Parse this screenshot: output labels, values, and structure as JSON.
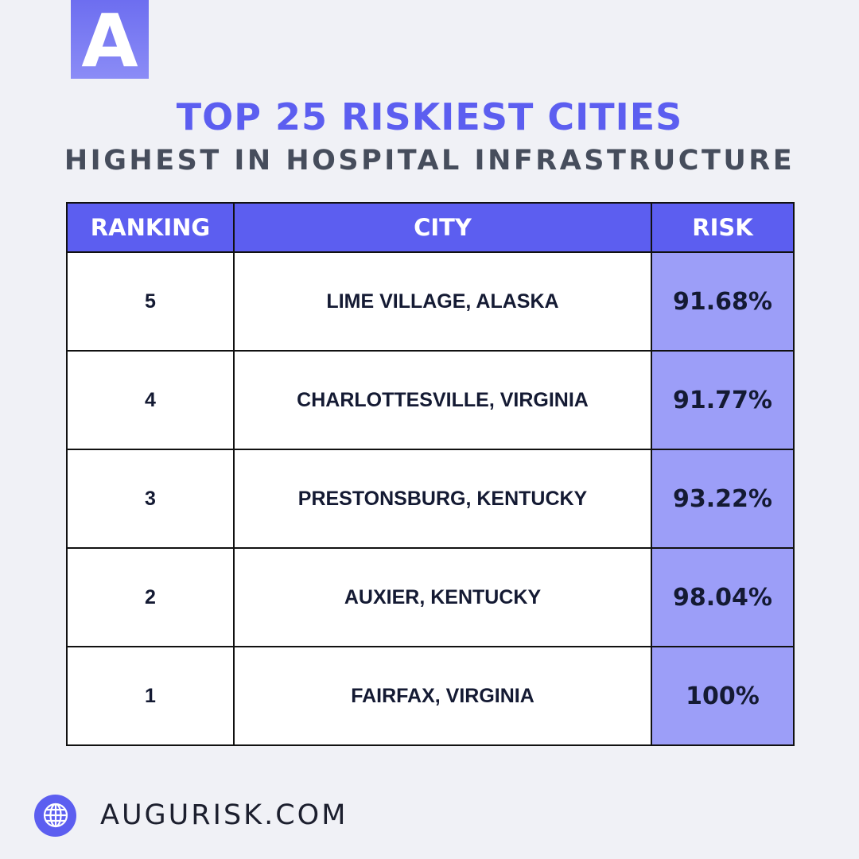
{
  "brand": {
    "logo_letter": "A",
    "accent_color": "#5c5ef0",
    "risk_cell_color": "#9c9ef8"
  },
  "header": {
    "title": "TOP 25 RISKIEST CITIES",
    "subtitle": "HIGHEST IN HOSPITAL INFRASTRUCTURE"
  },
  "chart_data": {
    "type": "table",
    "title": "TOP 25 RISKIEST CITIES",
    "subtitle": "HIGHEST IN HOSPITAL INFRASTRUCTURE",
    "columns": [
      "RANKING",
      "CITY",
      "RISK"
    ],
    "rows": [
      {
        "ranking": "5",
        "city": "LIME VILLAGE, ALASKA",
        "risk": "91.68%"
      },
      {
        "ranking": "4",
        "city": "CHARLOTTESVILLE, VIRGINIA",
        "risk": "91.77%"
      },
      {
        "ranking": "3",
        "city": "PRESTONSBURG, KENTUCKY",
        "risk": "93.22%"
      },
      {
        "ranking": "2",
        "city": "AUXIER, KENTUCKY",
        "risk": "98.04%"
      },
      {
        "ranking": "1",
        "city": "FAIRFAX, VIRGINIA",
        "risk": "100%"
      }
    ]
  },
  "footer": {
    "icon": "globe-icon",
    "website": "AUGURISK.COM"
  }
}
